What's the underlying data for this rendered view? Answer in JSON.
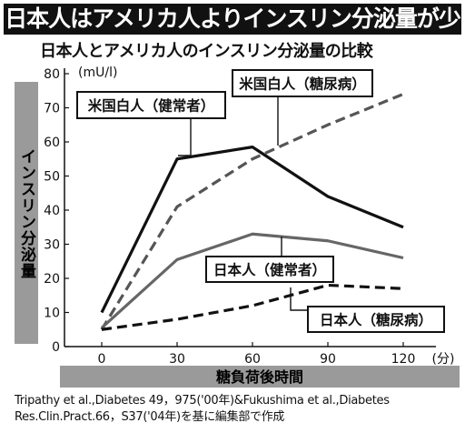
{
  "banner": "日本人はアメリカ人よりインスリン分泌量が少ない",
  "chart_data": {
    "type": "line",
    "title": "日本人とアメリカ人のインスリン分泌量の比較",
    "ylabel": "インスリン分泌量",
    "yunit": "(mU/l)",
    "xlabel": "糖負荷後時間",
    "xunit": "(分)",
    "x": [
      0,
      30,
      60,
      90,
      120
    ],
    "xticks": [
      "0",
      "30",
      "60",
      "90",
      "120"
    ],
    "yticks": [
      "0",
      "10",
      "20",
      "30",
      "40",
      "50",
      "60",
      "70",
      "80"
    ],
    "ylim": [
      0,
      80
    ],
    "series": [
      {
        "name": "米国白人（健常者）",
        "values": [
          10,
          55,
          58.5,
          44,
          35
        ],
        "color": "#111111",
        "dash": "solid"
      },
      {
        "name": "米国白人（糖尿病）",
        "values": [
          5,
          41,
          55,
          65,
          74
        ],
        "color": "#555555",
        "dash": "dashed"
      },
      {
        "name": "日本人（健常者）",
        "values": [
          5.5,
          25.5,
          33,
          31,
          26
        ],
        "color": "#666666",
        "dash": "solid"
      },
      {
        "name": "日本人（糖尿病）",
        "values": [
          5,
          8,
          12,
          18,
          17
        ],
        "color": "#111111",
        "dash": "dashed"
      }
    ]
  },
  "source_note": "Tripathy et al.,Diabetes 49，975('00年)&Fukushima et al.,Diabetes Res.Clin.Pract.66，S37('04年)を基に編集部で作成"
}
